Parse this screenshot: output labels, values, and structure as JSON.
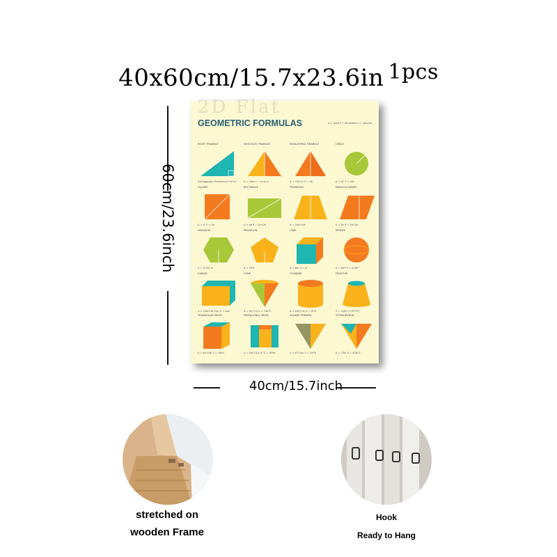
{
  "header": {
    "size_text": "40x60cm/15.7x23.6in",
    "qty_text": "1pcs"
  },
  "dimensions": {
    "height_label": "60cm/23.6inch",
    "width_label": "40cm/15.7inch"
  },
  "poster": {
    "watermark": "2D Flat",
    "title": "GEOMETRIC FORMULAS",
    "legend": "A = Area  P = Perimeter  V = Volume",
    "shapes": [
      {
        "label": "RIGHT TRIANGLE",
        "formula": "Pythagorean Theorem  a²+b²=c²"
      },
      {
        "label": "ISOSCELES TRIANGLE",
        "formula": "A = ½bh    P = a+b+c"
      },
      {
        "label": "EQUILATERAL TRIANGLE",
        "formula": "A = √3/4 a²    P = 3a"
      },
      {
        "label": "CIRCLE",
        "formula": "A = πr²    P = 2πr"
      },
      {
        "label": "SQUARE",
        "formula": "A = a²    P = 4a"
      },
      {
        "label": "RECTANGLE",
        "formula": "A = ab    P = 2a+2b"
      },
      {
        "label": "TRAPEZOID",
        "formula": "A = ½(a+b)h"
      },
      {
        "label": "PARALLELOGRAM",
        "formula": "A = bh    P = 2a+2b"
      },
      {
        "label": "HEXAGON",
        "formula": "A = 3√3/2 a²"
      },
      {
        "label": "PENTAGON",
        "formula": "A = ½Pa"
      },
      {
        "label": "CUBE",
        "formula": "A = 6a²    V = a³"
      },
      {
        "label": "SPHERE",
        "formula": "A = 4πr²    V = 4/3πr³"
      },
      {
        "label": "CUBOID",
        "formula": "A = 2(ab+bc+ac)    V = abc"
      },
      {
        "label": "CONE",
        "formula": "A = πr(r+s)    V = ⅓πr²h"
      },
      {
        "label": "CYLINDER",
        "formula": "A = 2πr(r+h)    V = πr²h"
      },
      {
        "label": "FRUSTUM",
        "formula": "V = ⅓πh(r²+rR+R²)"
      },
      {
        "label": "TRIANGULAR PRISM",
        "formula": "A = bh+3al    V = ½bhl"
      },
      {
        "label": "PENTAGONAL PRISM",
        "formula": "A = 5ah+5/2 a²    V = ½Pah"
      },
      {
        "label": "SQUARE PYRAMID",
        "formula": "A = a²+2as    V = ⅓a²h"
      },
      {
        "label": "TETRAHEDRON",
        "formula": "A = √3a²    V = a³/6√2"
      }
    ]
  },
  "thumbnails": {
    "frame": {
      "caption_line1": "stretched on",
      "caption_line2": "wooden Frame"
    },
    "hook": {
      "caption_line1": "Hook",
      "caption_line2": "Ready to Hang"
    }
  },
  "colors": {
    "teal": "#1fb5b0",
    "orange": "#f47a20",
    "amber": "#f9b21a",
    "lime": "#a8c83a",
    "poster_bg": "#fbf8d2"
  }
}
